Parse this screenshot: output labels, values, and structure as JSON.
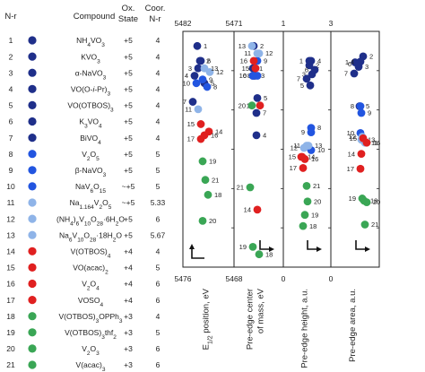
{
  "table": {
    "headers": {
      "nr": "N-r",
      "compound": "Compound",
      "ox": "Ox.\nState",
      "coor": "Coor.\nN-r"
    },
    "rows": [
      {
        "n": "1",
        "compound": "NH<sub>4</sub>VO<sub>3</sub>",
        "ox": "+5",
        "coor": "4",
        "color": "#1f2f8a"
      },
      {
        "n": "2",
        "compound": "KVO<sub>3</sub>",
        "ox": "+5",
        "coor": "4",
        "color": "#1f2f8a"
      },
      {
        "n": "3",
        "compound": "α-NaVO<sub>3</sub>",
        "ox": "+5",
        "coor": "4",
        "color": "#1f2f8a"
      },
      {
        "n": "4",
        "compound": "VO(O-<i>i</i>-Pr)<sub>3</sub>",
        "ox": "+5",
        "coor": "4",
        "color": "#1f2f8a"
      },
      {
        "n": "5",
        "compound": "VO(OTBOS)<sub>3</sub>",
        "ox": "+5",
        "coor": "4",
        "color": "#1f2f8a"
      },
      {
        "n": "6",
        "compound": "K<sub>3</sub>VO<sub>4</sub>",
        "ox": "+5",
        "coor": "4",
        "color": "#1f2f8a"
      },
      {
        "n": "7",
        "compound": "BiVO<sub>4</sub>",
        "ox": "+5",
        "coor": "4",
        "color": "#1f2f8a"
      },
      {
        "n": "8",
        "compound": "V<sub>2</sub>O<sub>5</sub>",
        "ox": "+5",
        "coor": "5",
        "color": "#2255e0"
      },
      {
        "n": "9",
        "compound": "β-NaVO<sub>3</sub>",
        "ox": "+5",
        "coor": "5",
        "color": "#2255e0"
      },
      {
        "n": "10",
        "compound": "NaV<sub>6</sub>O<sub>15</sub>",
        "ox": "~+5",
        "coor": "5",
        "color": "#2255e0"
      },
      {
        "n": "11",
        "compound": "Na<sub>1.164</sub>V<sub>2</sub>O<sub>5</sub>",
        "ox": "~+5",
        "coor": "5.33",
        "color": "#8fb4e8"
      },
      {
        "n": "12",
        "compound": "(NH<sub>4</sub>)<sub>6</sub>V<sub>10</sub>O<sub>28</sub>·6H<sub>2</sub>O",
        "ox": "+5",
        "coor": "6",
        "color": "#8fb4e8"
      },
      {
        "n": "13",
        "compound": "Na<sub>6</sub>V<sub>10</sub>O<sub>28</sub>·18H<sub>2</sub>O",
        "ox": "+5",
        "coor": "5.67",
        "color": "#8fb4e8"
      },
      {
        "n": "14",
        "compound": "V(OTBOS)<sub>4</sub>",
        "ox": "+4",
        "coor": "4",
        "color": "#e02020"
      },
      {
        "n": "15",
        "compound": "VO(acac)<sub>2</sub>",
        "ox": "+4",
        "coor": "5",
        "color": "#e02020"
      },
      {
        "n": "16",
        "compound": "V<sub>2</sub>O<sub>4</sub>",
        "ox": "+4",
        "coor": "6",
        "color": "#e02020"
      },
      {
        "n": "17",
        "compound": "VOSO<sub>4</sub>",
        "ox": "+4",
        "coor": "6",
        "color": "#e02020"
      },
      {
        "n": "18",
        "compound": "V(OTBOS)<sub>3</sub>OPPh<sub>3</sub>",
        "ox": "+3",
        "coor": "4",
        "color": "#3aa655"
      },
      {
        "n": "19",
        "compound": "V(OTBOS)<sub>3</sub>thf<sub>2</sub>",
        "ox": "+3",
        "coor": "5",
        "color": "#3aa655"
      },
      {
        "n": "20",
        "compound": "V<sub>2</sub>O<sub>3</sub>",
        "ox": "+3",
        "coor": "6",
        "color": "#3aa655"
      },
      {
        "n": "21",
        "compound": "V(acac)<sub>3</sub>",
        "ox": "+3",
        "coor": "6",
        "color": "#3aa655"
      }
    ]
  },
  "chart_data": [
    {
      "type": "scatter",
      "xlabel": "E1/2 position, eV",
      "xlabel_main": "E",
      "xlabel_sub": "1/2",
      "xlabel_rest": " position, eV",
      "axis_top": "5482",
      "axis_bottom": "5476",
      "ylim": [
        5476,
        5482
      ],
      "points": [
        {
          "n": "1",
          "y": 5481.8
        },
        {
          "n": "2",
          "y": 5481.4
        },
        {
          "n": "3",
          "y": 5481.2
        },
        {
          "n": "4",
          "y": 5481.0
        },
        {
          "n": "5",
          "y": 5480.8
        },
        {
          "n": "6",
          "y": 5481.4
        },
        {
          "n": "7",
          "y": 5480.3
        },
        {
          "n": "8",
          "y": 5480.7
        },
        {
          "n": "9",
          "y": 5480.9
        },
        {
          "n": "10",
          "y": 5480.8
        },
        {
          "n": "11",
          "y": 5480.1
        },
        {
          "n": "12",
          "y": 5481.1
        },
        {
          "n": "13",
          "y": 5481.2
        },
        {
          "n": "14",
          "y": 5479.5
        },
        {
          "n": "15",
          "y": 5479.7
        },
        {
          "n": "16",
          "y": 5479.4
        },
        {
          "n": "17",
          "y": 5479.3
        },
        {
          "n": "18",
          "y": 5477.8
        },
        {
          "n": "19",
          "y": 5478.7
        },
        {
          "n": "20",
          "y": 5477.1
        },
        {
          "n": "21",
          "y": 5478.2
        }
      ]
    },
    {
      "type": "scatter",
      "xlabel": "Pre-edge center of mass, eV",
      "axis_top": "5471",
      "axis_bottom": "5468",
      "ylim": [
        5468,
        5471
      ],
      "points": [
        {
          "n": "1",
          "y": 5470.6
        },
        {
          "n": "2",
          "y": 5470.9
        },
        {
          "n": "3",
          "y": 5470.5
        },
        {
          "n": "4",
          "y": 5469.7
        },
        {
          "n": "5",
          "y": 5470.2
        },
        {
          "n": "6",
          "y": 5470.5
        },
        {
          "n": "7",
          "y": 5470.0
        },
        {
          "n": "8",
          "y": 5470.5
        },
        {
          "n": "9",
          "y": 5470.7
        },
        {
          "n": "10",
          "y": 5470.5
        },
        {
          "n": "11",
          "y": 5470.8
        },
        {
          "n": "12",
          "y": 5470.8
        },
        {
          "n": "13",
          "y": 5470.9
        },
        {
          "n": "14",
          "y": 5468.7
        },
        {
          "n": "15",
          "y": 5470.6
        },
        {
          "n": "16",
          "y": 5470.7
        },
        {
          "n": "17",
          "y": 5470.1
        },
        {
          "n": "18",
          "y": 5468.1
        },
        {
          "n": "19",
          "y": 5468.2
        },
        {
          "n": "20",
          "y": 5470.1
        },
        {
          "n": "21",
          "y": 5469.0
        }
      ]
    },
    {
      "type": "scatter",
      "xlabel": "Pre-edge height, a.u.",
      "axis_top": "1",
      "axis_bottom": "0",
      "ylim": [
        0,
        1
      ],
      "points": [
        {
          "n": "1",
          "y": 0.9
        },
        {
          "n": "2",
          "y": 0.88
        },
        {
          "n": "3",
          "y": 0.84
        },
        {
          "n": "4",
          "y": 0.9
        },
        {
          "n": "5",
          "y": 0.79
        },
        {
          "n": "6",
          "y": 0.86
        },
        {
          "n": "7",
          "y": 0.82
        },
        {
          "n": "8",
          "y": 0.6
        },
        {
          "n": "9",
          "y": 0.58
        },
        {
          "n": "10",
          "y": 0.5
        },
        {
          "n": "11",
          "y": 0.52
        },
        {
          "n": "12",
          "y": 0.51
        },
        {
          "n": "13",
          "y": 0.52
        },
        {
          "n": "14",
          "y": 0.47
        },
        {
          "n": "15",
          "y": 0.47
        },
        {
          "n": "16",
          "y": 0.46
        },
        {
          "n": "17",
          "y": 0.42
        },
        {
          "n": "18",
          "y": 0.16
        },
        {
          "n": "19",
          "y": 0.21
        },
        {
          "n": "20",
          "y": 0.27
        },
        {
          "n": "21",
          "y": 0.34
        }
      ]
    },
    {
      "type": "scatter",
      "xlabel": "Pre-edge area, a.u.",
      "axis_top": "3",
      "axis_bottom": "0",
      "ylim": [
        0,
        3
      ],
      "points": [
        {
          "n": "1",
          "y": 2.68
        },
        {
          "n": "2",
          "y": 2.76
        },
        {
          "n": "3",
          "y": 2.62
        },
        {
          "n": "4",
          "y": 2.69
        },
        {
          "n": "5",
          "y": 2.09
        },
        {
          "n": "6",
          "y": 2.66
        },
        {
          "n": "7",
          "y": 2.53
        },
        {
          "n": "8",
          "y": 2.09
        },
        {
          "n": "9",
          "y": 2.0
        },
        {
          "n": "10",
          "y": 1.73
        },
        {
          "n": "11",
          "y": 1.6
        },
        {
          "n": "12",
          "y": 1.68
        },
        {
          "n": "13",
          "y": 1.64
        },
        {
          "n": "14",
          "y": 1.45
        },
        {
          "n": "15",
          "y": 1.66
        },
        {
          "n": "16",
          "y": 1.6
        },
        {
          "n": "17",
          "y": 1.25
        },
        {
          "n": "18",
          "y": 0.82
        },
        {
          "n": "19",
          "y": 0.85
        },
        {
          "n": "20",
          "y": 0.8
        },
        {
          "n": "21",
          "y": 0.5
        }
      ]
    }
  ]
}
